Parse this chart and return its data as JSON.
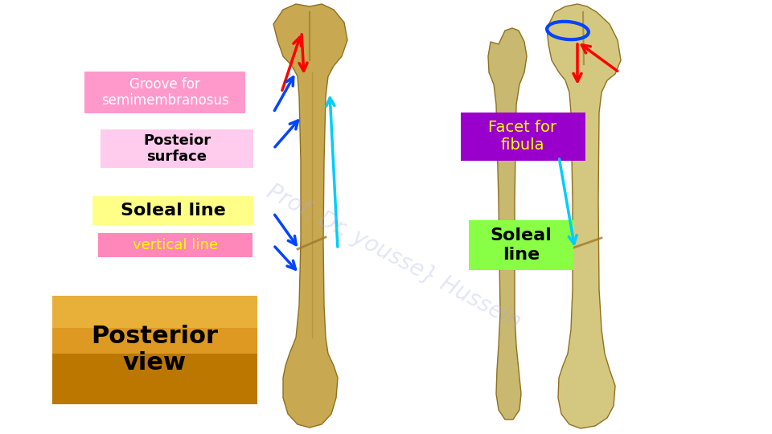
{
  "bg_color": "#ffffff",
  "labels": {
    "groove": "Groove for\nsemimembranosus",
    "posterior": "Posteior\nsurface",
    "soleal_left": "Soleal line",
    "vertical": "vertical line",
    "posterior_view": "Posterior\nview",
    "facet": "Facet for\nfibula",
    "soleal_right": "Soleal\nline"
  },
  "box_colors": {
    "groove": "#ff99cc",
    "posterior": "#ffccee",
    "soleal_left": "#ffff88",
    "vertical": "#ff88bb",
    "facet": "#9900cc",
    "soleal_right": "#88ff44"
  },
  "text_colors": {
    "groove": "#ffffff",
    "posterior": "#000000",
    "soleal_left": "#000000",
    "vertical": "#ffff00",
    "posterior_view": "#000000",
    "facet": "#ffff00",
    "soleal_right": "#000000"
  },
  "bone_color_left": "#c8a850",
  "bone_color_right": "#d4c880",
  "bone_edge": "#907020",
  "bone_shadow": "#a07830",
  "posterior_view_top": "#ddaa44",
  "posterior_view_bottom": "#cc8800",
  "watermark_color": "#aaaaee"
}
